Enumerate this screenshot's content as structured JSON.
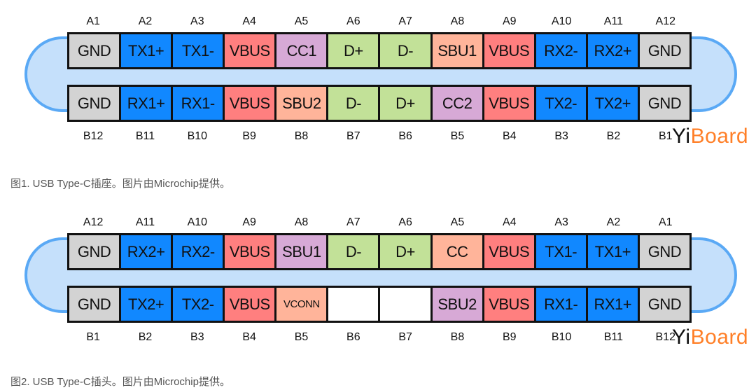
{
  "colors": {
    "gnd": "#d3d3d3",
    "blue": "#1188ff",
    "vbus": "#ff7f7f",
    "purple": "#d7a9d6",
    "green": "#c2e198",
    "orange": "#ffb49a",
    "empty": "#ffffff"
  },
  "logo": {
    "prefix": "Yi",
    "name": "Board"
  },
  "figures": [
    {
      "top_labels": [
        "A1",
        "A2",
        "A3",
        "A4",
        "A5",
        "A6",
        "A7",
        "A8",
        "A9",
        "A10",
        "A11",
        "A12"
      ],
      "top_cells": [
        [
          "GND",
          "gnd"
        ],
        [
          "TX1+",
          "blue"
        ],
        [
          "TX1-",
          "blue"
        ],
        [
          "VBUS",
          "vbus"
        ],
        [
          "CC1",
          "purple"
        ],
        [
          "D+",
          "green"
        ],
        [
          "D-",
          "green"
        ],
        [
          "SBU1",
          "orange"
        ],
        [
          "VBUS",
          "vbus"
        ],
        [
          "RX2-",
          "blue"
        ],
        [
          "RX2+",
          "blue"
        ],
        [
          "GND",
          "gnd"
        ]
      ],
      "bottom_cells": [
        [
          "GND",
          "gnd"
        ],
        [
          "RX1+",
          "blue"
        ],
        [
          "RX1-",
          "blue"
        ],
        [
          "VBUS",
          "vbus"
        ],
        [
          "SBU2",
          "orange"
        ],
        [
          "D-",
          "green"
        ],
        [
          "D+",
          "green"
        ],
        [
          "CC2",
          "purple"
        ],
        [
          "VBUS",
          "vbus"
        ],
        [
          "TX2-",
          "blue"
        ],
        [
          "TX2+",
          "blue"
        ],
        [
          "GND",
          "gnd"
        ]
      ],
      "bottom_labels": [
        "B12",
        "B11",
        "B10",
        "B9",
        "B8",
        "B7",
        "B6",
        "B5",
        "B4",
        "B3",
        "B2",
        "B1"
      ],
      "caption": "图1. USB Type-C插座。图片由Microchip提供。"
    },
    {
      "top_labels": [
        "A12",
        "A11",
        "A10",
        "A9",
        "A8",
        "A7",
        "A6",
        "A5",
        "A4",
        "A3",
        "A2",
        "A1"
      ],
      "top_cells": [
        [
          "GND",
          "gnd"
        ],
        [
          "RX2+",
          "blue"
        ],
        [
          "RX2-",
          "blue"
        ],
        [
          "VBUS",
          "vbus"
        ],
        [
          "SBU1",
          "purple"
        ],
        [
          "D-",
          "green"
        ],
        [
          "D+",
          "green"
        ],
        [
          "CC",
          "orange"
        ],
        [
          "VBUS",
          "vbus"
        ],
        [
          "TX1-",
          "blue"
        ],
        [
          "TX1+",
          "blue"
        ],
        [
          "GND",
          "gnd"
        ]
      ],
      "bottom_cells": [
        [
          "GND",
          "gnd"
        ],
        [
          "TX2+",
          "blue"
        ],
        [
          "TX2-",
          "blue"
        ],
        [
          "VBUS",
          "vbus"
        ],
        [
          "VCONN",
          "orange"
        ],
        [
          "",
          "empty"
        ],
        [
          "",
          "empty"
        ],
        [
          "SBU2",
          "purple"
        ],
        [
          "VBUS",
          "vbus"
        ],
        [
          "RX1-",
          "blue"
        ],
        [
          "RX1+",
          "blue"
        ],
        [
          "GND",
          "gnd"
        ]
      ],
      "bottom_labels": [
        "B1",
        "B2",
        "B3",
        "B4",
        "B5",
        "B6",
        "B7",
        "B8",
        "B9",
        "B10",
        "B11",
        "B12"
      ],
      "caption": "图2. USB Type-C插头。图片由Microchip提供。"
    }
  ]
}
